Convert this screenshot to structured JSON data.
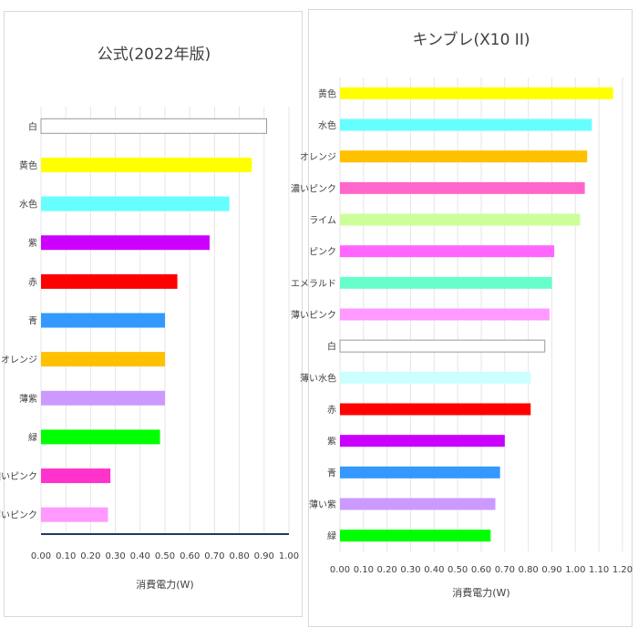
{
  "chart_data": [
    {
      "type": "bar",
      "orientation": "horizontal",
      "title": "公式(2022年版)",
      "xlabel": "消費電力(W)",
      "ylabel": "",
      "xlim": [
        0,
        1.0
      ],
      "xticks": [
        "0.00",
        "0.10",
        "0.20",
        "0.30",
        "0.40",
        "0.50",
        "0.60",
        "0.70",
        "0.80",
        "0.90",
        "1.00"
      ],
      "grid": "vertical",
      "categories": [
        "白",
        "黄色",
        "水色",
        "紫",
        "赤",
        "青",
        "オレンジ",
        "薄紫",
        "緑",
        "濃いピンク",
        "薄いピンク"
      ],
      "values": [
        0.91,
        0.85,
        0.76,
        0.68,
        0.55,
        0.5,
        0.5,
        0.5,
        0.48,
        0.28,
        0.27
      ],
      "colors": [
        "#ffffff",
        "#ffff00",
        "#66ffff",
        "#cc00ff",
        "#ff0000",
        "#3399ff",
        "#ffc000",
        "#cc99ff",
        "#00ff00",
        "#ff33cc",
        "#ff99ff"
      ]
    },
    {
      "type": "bar",
      "orientation": "horizontal",
      "title": "キンブレ(X10 II)",
      "xlabel": "消費電力(W)",
      "ylabel": "",
      "xlim": [
        0,
        1.2
      ],
      "xticks": [
        "0.00",
        "0.10",
        "0.20",
        "0.30",
        "0.40",
        "0.50",
        "0.60",
        "0.70",
        "0.80",
        "0.90",
        "1.00",
        "1.10",
        "1.20"
      ],
      "grid": "vertical",
      "categories": [
        "黄色",
        "水色",
        "オレンジ",
        "濃いピンク",
        "ライム",
        "ピンク",
        "エメラルド",
        "薄いピンク",
        "白",
        "薄い水色",
        "赤",
        "紫",
        "青",
        "薄い紫",
        "緑"
      ],
      "values": [
        1.16,
        1.07,
        1.05,
        1.04,
        1.02,
        0.91,
        0.9,
        0.89,
        0.87,
        0.81,
        0.81,
        0.7,
        0.68,
        0.66,
        0.64
      ],
      "colors": [
        "#ffff00",
        "#66ffff",
        "#ffc000",
        "#ff66cc",
        "#ccff99",
        "#ff66ff",
        "#66ffcc",
        "#ff99ff",
        "#ffffff",
        "#ccffff",
        "#ff0000",
        "#cc00ff",
        "#3399ff",
        "#cc99ff",
        "#00ff00"
      ]
    }
  ]
}
